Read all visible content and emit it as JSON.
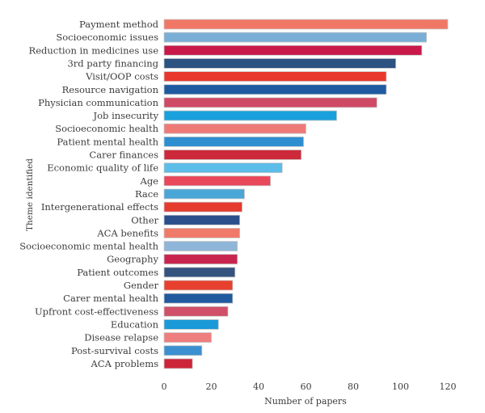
{
  "chart_data": {
    "type": "bar",
    "orientation": "horizontal",
    "title": "",
    "xlabel": "Number of papers",
    "ylabel": "Theme identified",
    "xlim": [
      0,
      120
    ],
    "xticks": [
      0,
      20,
      40,
      60,
      80,
      100,
      120
    ],
    "grid": false,
    "categories": [
      "Payment method",
      "Socioeconomic issues",
      "Reduction in medicines use",
      "3rd party financing",
      "Visit/OOP costs",
      "Resource navigation",
      "Physician communication",
      "Job insecurity",
      "Socioeconomic health",
      "Patient mental health",
      "Carer finances",
      "Economic quality of life",
      "Age",
      "Race",
      "Intergenerational effects",
      "Other",
      "ACA benefits",
      "Socioeconomic mental health",
      "Geography",
      "Patient outcomes",
      "Gender",
      "Carer mental health",
      "Upfront cost-effectiveness",
      "Education",
      "Disease relapse",
      "Post-survival costs",
      "ACA problems"
    ],
    "values": [
      120,
      111,
      109,
      98,
      94,
      94,
      90,
      73,
      60,
      59,
      58,
      50,
      45,
      34,
      33,
      32,
      32,
      31,
      31,
      30,
      29,
      29,
      27,
      23,
      20,
      16,
      12
    ],
    "colors": [
      "#f07766",
      "#7aaed6",
      "#c9184a",
      "#2c5282",
      "#e8382e",
      "#1f5aa0",
      "#cf4a64",
      "#1aa0dc",
      "#ee7a78",
      "#2e8fd0",
      "#cc2a3a",
      "#5cbde8",
      "#e8485a",
      "#4aa6d6",
      "#e53a2e",
      "#2a4f8a",
      "#f07a6a",
      "#8fb6d8",
      "#c8254e",
      "#34547e",
      "#e8402e",
      "#1f5a9e",
      "#cf5068",
      "#1a9ad8",
      "#ee7f7e",
      "#3c90d0",
      "#cc2438"
    ]
  }
}
